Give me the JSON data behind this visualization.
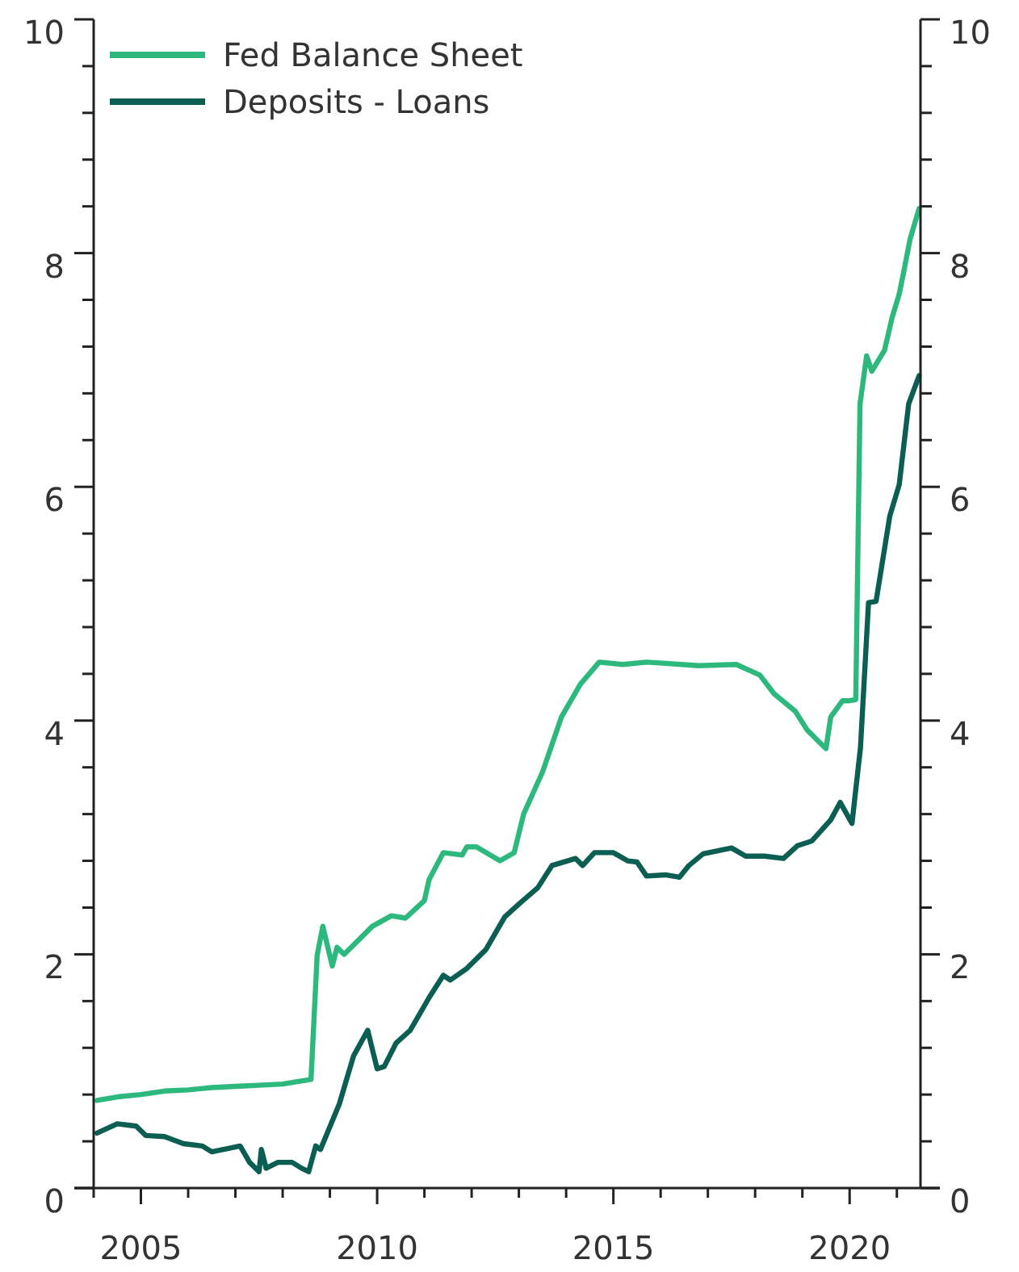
{
  "chart_data": {
    "type": "line",
    "x": [
      2004.07,
      2004.5,
      2005.0,
      2005.5,
      2006.0,
      2006.5,
      2007.0,
      2007.5,
      2008.0,
      2008.6,
      2008.73,
      2008.85,
      2009.05,
      2009.15,
      2009.3,
      2009.9,
      2010.3,
      2010.6,
      2011.0,
      2011.1,
      2011.4,
      2011.8,
      2011.9,
      2012.1,
      2012.6,
      2012.9,
      2013.1,
      2013.5,
      2013.9,
      2014.3,
      2014.7,
      2015.2,
      2015.7,
      2016.1,
      2016.8,
      2017.6,
      2018.1,
      2018.4,
      2018.85,
      2019.1,
      2019.5,
      2019.6,
      2019.85,
      2020.0,
      2020.13,
      2020.22,
      2020.36,
      2020.47,
      2020.74,
      2020.9,
      2021.05,
      2021.15,
      2021.28,
      2021.47
    ],
    "series": [
      {
        "name": "Fed Balance Sheet",
        "color": "#2db87d",
        "values": [
          0.75,
          0.78,
          0.8,
          0.83,
          0.84,
          0.86,
          0.87,
          0.88,
          0.89,
          0.93,
          1.99,
          2.24,
          1.9,
          2.06,
          2.0,
          2.24,
          2.33,
          2.31,
          2.46,
          2.64,
          2.87,
          2.85,
          2.92,
          2.92,
          2.8,
          2.87,
          3.2,
          3.56,
          4.03,
          4.31,
          4.5,
          4.48,
          4.5,
          4.49,
          4.47,
          4.48,
          4.39,
          4.23,
          4.08,
          3.92,
          3.76,
          4.03,
          4.17,
          4.17,
          4.18,
          6.71,
          7.12,
          6.99,
          7.17,
          7.45,
          7.65,
          7.85,
          8.12,
          8.38
        ]
      },
      {
        "name": "Deposits - Loans",
        "color": "#0b5e52",
        "x": [
          2004.07,
          2004.5,
          2004.9,
          2005.1,
          2005.5,
          2005.9,
          2006.3,
          2006.5,
          2007.1,
          2007.3,
          2007.5,
          2007.55,
          2007.65,
          2007.9,
          2008.2,
          2008.4,
          2008.55,
          2008.7,
          2008.8,
          2009.2,
          2009.5,
          2009.8,
          2010.0,
          2010.15,
          2010.4,
          2010.7,
          2011.1,
          2011.4,
          2011.55,
          2011.9,
          2012.3,
          2012.7,
          2013.0,
          2013.4,
          2013.7,
          2014.2,
          2014.35,
          2014.6,
          2015.0,
          2015.3,
          2015.5,
          2015.7,
          2016.1,
          2016.4,
          2016.6,
          2016.9,
          2017.5,
          2017.8,
          2018.2,
          2018.6,
          2018.9,
          2019.2,
          2019.6,
          2019.8,
          2020.05,
          2020.23,
          2020.4,
          2020.56,
          2020.85,
          2021.05,
          2021.25,
          2021.47
        ],
        "values": [
          0.47,
          0.55,
          0.53,
          0.45,
          0.44,
          0.38,
          0.36,
          0.31,
          0.36,
          0.22,
          0.14,
          0.33,
          0.17,
          0.22,
          0.22,
          0.17,
          0.14,
          0.36,
          0.33,
          0.72,
          1.13,
          1.35,
          1.02,
          1.04,
          1.24,
          1.35,
          1.63,
          1.82,
          1.78,
          1.88,
          2.04,
          2.32,
          2.43,
          2.57,
          2.76,
          2.82,
          2.76,
          2.87,
          2.87,
          2.8,
          2.79,
          2.67,
          2.68,
          2.66,
          2.76,
          2.86,
          2.91,
          2.84,
          2.84,
          2.82,
          2.93,
          2.97,
          3.15,
          3.3,
          3.12,
          3.77,
          5.01,
          5.02,
          5.75,
          6.02,
          6.71,
          6.95
        ]
      }
    ],
    "xlim": [
      2004,
      2021.5
    ],
    "xticks": [
      {
        "value": 2004,
        "label": null
      },
      2005,
      {
        "value": 2006,
        "label": null
      },
      {
        "value": 2007,
        "label": null
      },
      {
        "value": 2008,
        "label": null
      },
      {
        "value": 2009,
        "label": null
      },
      2010,
      {
        "value": 2011,
        "label": null
      },
      {
        "value": 2012,
        "label": null
      },
      {
        "value": 2013,
        "label": null
      },
      {
        "value": 2014,
        "label": null
      },
      2015,
      {
        "value": 2016,
        "label": null
      },
      {
        "value": 2017,
        "label": null
      },
      {
        "value": 2018,
        "label": null
      },
      {
        "value": 2019,
        "label": null
      },
      2020,
      {
        "value": 2021,
        "label": null
      }
    ],
    "ylim": [
      0,
      10
    ],
    "yticks": [
      0,
      {
        "value": 0.4,
        "label": null
      },
      {
        "value": 0.8,
        "label": null
      },
      {
        "value": 1.2,
        "label": null
      },
      {
        "value": 1.6,
        "label": null
      },
      2,
      {
        "value": 2.4,
        "label": null
      },
      {
        "value": 2.8,
        "label": null
      },
      {
        "value": 3.2,
        "label": null
      },
      {
        "value": 3.6,
        "label": null
      },
      4,
      {
        "value": 4.4,
        "label": null
      },
      {
        "value": 4.8,
        "label": null
      },
      {
        "value": 5.2,
        "label": null
      },
      {
        "value": 5.6,
        "label": null
      },
      6,
      {
        "value": 6.4,
        "label": null
      },
      {
        "value": 6.8,
        "label": null
      },
      {
        "value": 7.2,
        "label": null
      },
      {
        "value": 7.6,
        "label": null
      },
      8,
      {
        "value": 8.4,
        "label": null
      },
      {
        "value": 8.8,
        "label": null
      },
      {
        "value": 9.2,
        "label": null
      },
      {
        "value": 9.6,
        "label": null
      },
      10
    ],
    "y2lim": [
      0,
      10
    ],
    "y2ticks": [
      0,
      {
        "value": 0.4,
        "label": null
      },
      {
        "value": 0.8,
        "label": null
      },
      {
        "value": 1.2,
        "label": null
      },
      {
        "value": 1.6,
        "label": null
      },
      2,
      {
        "value": 2.4,
        "label": null
      },
      {
        "value": 2.8,
        "label": null
      },
      {
        "value": 3.2,
        "label": null
      },
      {
        "value": 3.6,
        "label": null
      },
      4,
      {
        "value": 4.4,
        "label": null
      },
      {
        "value": 4.8,
        "label": null
      },
      {
        "value": 5.2,
        "label": null
      },
      {
        "value": 5.6,
        "label": null
      },
      6,
      {
        "value": 6.4,
        "label": null
      },
      {
        "value": 6.8,
        "label": null
      },
      {
        "value": 7.2,
        "label": null
      },
      {
        "value": 7.6,
        "label": null
      },
      8,
      {
        "value": 8.4,
        "label": null
      },
      {
        "value": 8.8,
        "label": null
      },
      {
        "value": 9.2,
        "label": null
      },
      {
        "value": 9.6,
        "label": null
      },
      10
    ],
    "grid": false,
    "legend": "top left",
    "marker": "none",
    "line_style": "solid"
  }
}
